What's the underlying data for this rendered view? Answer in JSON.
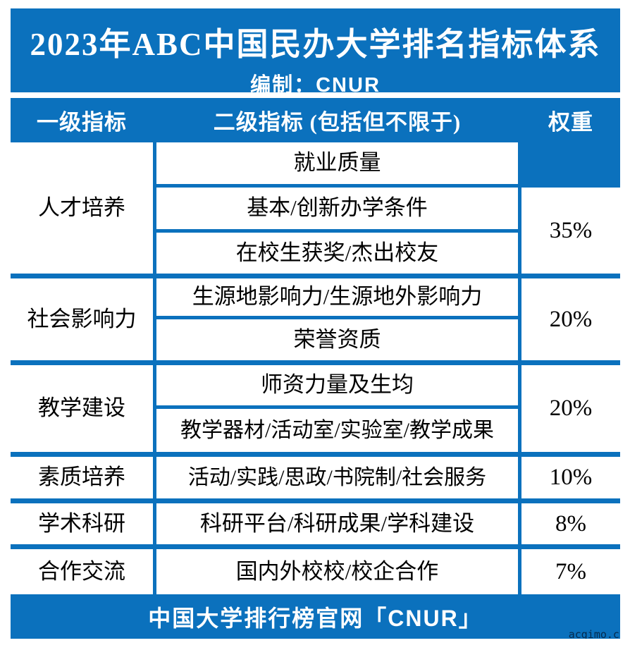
{
  "colors": {
    "primary_blue": "#0b71bd",
    "text": "#000000",
    "band_text": "#ffffff"
  },
  "title": {
    "text": "2023年ABC中国民办大学排名指标体系",
    "subtitle": "编制：CNUR"
  },
  "table": {
    "headers": [
      "一级指标",
      "二级指标 (包括但不限于)",
      "权重"
    ],
    "groups": [
      {
        "category": "人才培养",
        "weight": "35%",
        "indicators": [
          "就业质量",
          "基本/创新办学条件",
          "在校生获奖/杰出校友"
        ]
      },
      {
        "category": "社会影响力",
        "weight": "20%",
        "indicators": [
          "生源地影响力/生源地外影响力",
          "荣誉资质"
        ]
      },
      {
        "category": "教学建设",
        "weight": "20%",
        "indicators": [
          "师资力量及生均",
          "教学器材/活动室/实验室/教学成果"
        ]
      },
      {
        "category": "素质培养",
        "weight": "10%",
        "indicators": [
          "活动/实践/思政/书院制/社会服务"
        ]
      },
      {
        "category": "学术科研",
        "weight": "8%",
        "indicators": [
          "科研平台/科研成果/学科建设"
        ]
      },
      {
        "category": "合作交流",
        "weight": "7%",
        "indicators": [
          "国内外校校/校企合作"
        ]
      }
    ]
  },
  "footer": {
    "text": "中国大学排行榜官网「CNUR」"
  },
  "watermark": "acgimo.co",
  "chart_data": {
    "type": "table",
    "title": "2023年ABC中国民办大学排名指标体系",
    "columns": [
      "一级指标",
      "二级指标 (包括但不限于)",
      "权重"
    ],
    "rows": [
      [
        "人才培养",
        "就业质量",
        "35%"
      ],
      [
        "人才培养",
        "基本/创新办学条件",
        "35%"
      ],
      [
        "人才培养",
        "在校生获奖/杰出校友",
        "35%"
      ],
      [
        "社会影响力",
        "生源地影响力/生源地外影响力",
        "20%"
      ],
      [
        "社会影响力",
        "荣誉资质",
        "20%"
      ],
      [
        "教学建设",
        "师资力量及生均",
        "20%"
      ],
      [
        "教学建设",
        "教学器材/活动室/实验室/教学成果",
        "20%"
      ],
      [
        "素质培养",
        "活动/实践/思政/书院制/社会服务",
        "10%"
      ],
      [
        "学术科研",
        "科研平台/科研成果/学科建设",
        "8%"
      ],
      [
        "合作交流",
        "国内外校校/校企合作",
        "7%"
      ]
    ]
  }
}
